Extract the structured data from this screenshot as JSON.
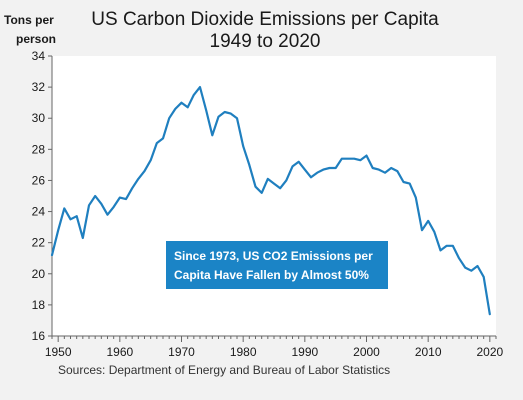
{
  "chart_data": {
    "type": "line",
    "title": "US Carbon Dioxide Emissions per Capita",
    "subtitle": "1949 to 2020",
    "ylabel_lines": [
      "Tons per",
      "person"
    ],
    "xlabel": "",
    "xlim": [
      1949,
      2021
    ],
    "ylim": [
      16,
      34
    ],
    "xticks": [
      1950,
      1960,
      1970,
      1980,
      1990,
      2000,
      2010,
      2020
    ],
    "yticks": [
      16,
      18,
      20,
      22,
      24,
      26,
      28,
      30,
      32,
      34
    ],
    "grid": false,
    "line_color": "#1f7fbf",
    "annotation": {
      "lines": [
        "Since 1973, US CO2 Emissions per",
        "Capita Have Fallen by Almost 50%"
      ],
      "background": "#1b84c6"
    },
    "source": "Sources: Department of Energy and Bureau of Labor Statistics",
    "series": [
      {
        "x": [
          1949,
          1950,
          1951,
          1952,
          1953,
          1954,
          1955,
          1956,
          1957,
          1958,
          1959,
          1960,
          1961,
          1962,
          1963,
          1964,
          1965,
          1966,
          1967,
          1968,
          1969,
          1970,
          1971,
          1972,
          1973,
          1974,
          1975,
          1976,
          1977,
          1978,
          1979,
          1980,
          1981,
          1982,
          1983,
          1984,
          1985,
          1986,
          1987,
          1988,
          1989,
          1990,
          1991,
          1992,
          1993,
          1994,
          1995,
          1996,
          1997,
          1998,
          1999,
          2000,
          2001,
          2002,
          2003,
          2004,
          2005,
          2006,
          2007,
          2008,
          2009,
          2010,
          2011,
          2012,
          2013,
          2014,
          2015,
          2016,
          2017,
          2018,
          2019,
          2020
        ],
        "values": [
          21.2,
          22.8,
          24.2,
          23.5,
          23.7,
          22.3,
          24.4,
          25.0,
          24.5,
          23.8,
          24.3,
          24.9,
          24.8,
          25.5,
          26.1,
          26.6,
          27.3,
          28.4,
          28.7,
          30.0,
          30.6,
          31.0,
          30.7,
          31.5,
          32.0,
          30.5,
          28.9,
          30.1,
          30.4,
          30.3,
          30.0,
          28.2,
          27.0,
          25.6,
          25.2,
          26.1,
          25.8,
          25.5,
          26.0,
          26.9,
          27.2,
          26.7,
          26.2,
          26.5,
          26.7,
          26.8,
          26.8,
          27.4,
          27.4,
          27.4,
          27.3,
          27.6,
          26.8,
          26.7,
          26.5,
          26.8,
          26.6,
          25.9,
          25.8,
          24.9,
          22.8,
          23.4,
          22.7,
          21.5,
          21.8,
          21.8,
          21.0,
          20.4,
          20.2,
          20.5,
          19.8,
          17.4
        ]
      }
    ]
  }
}
